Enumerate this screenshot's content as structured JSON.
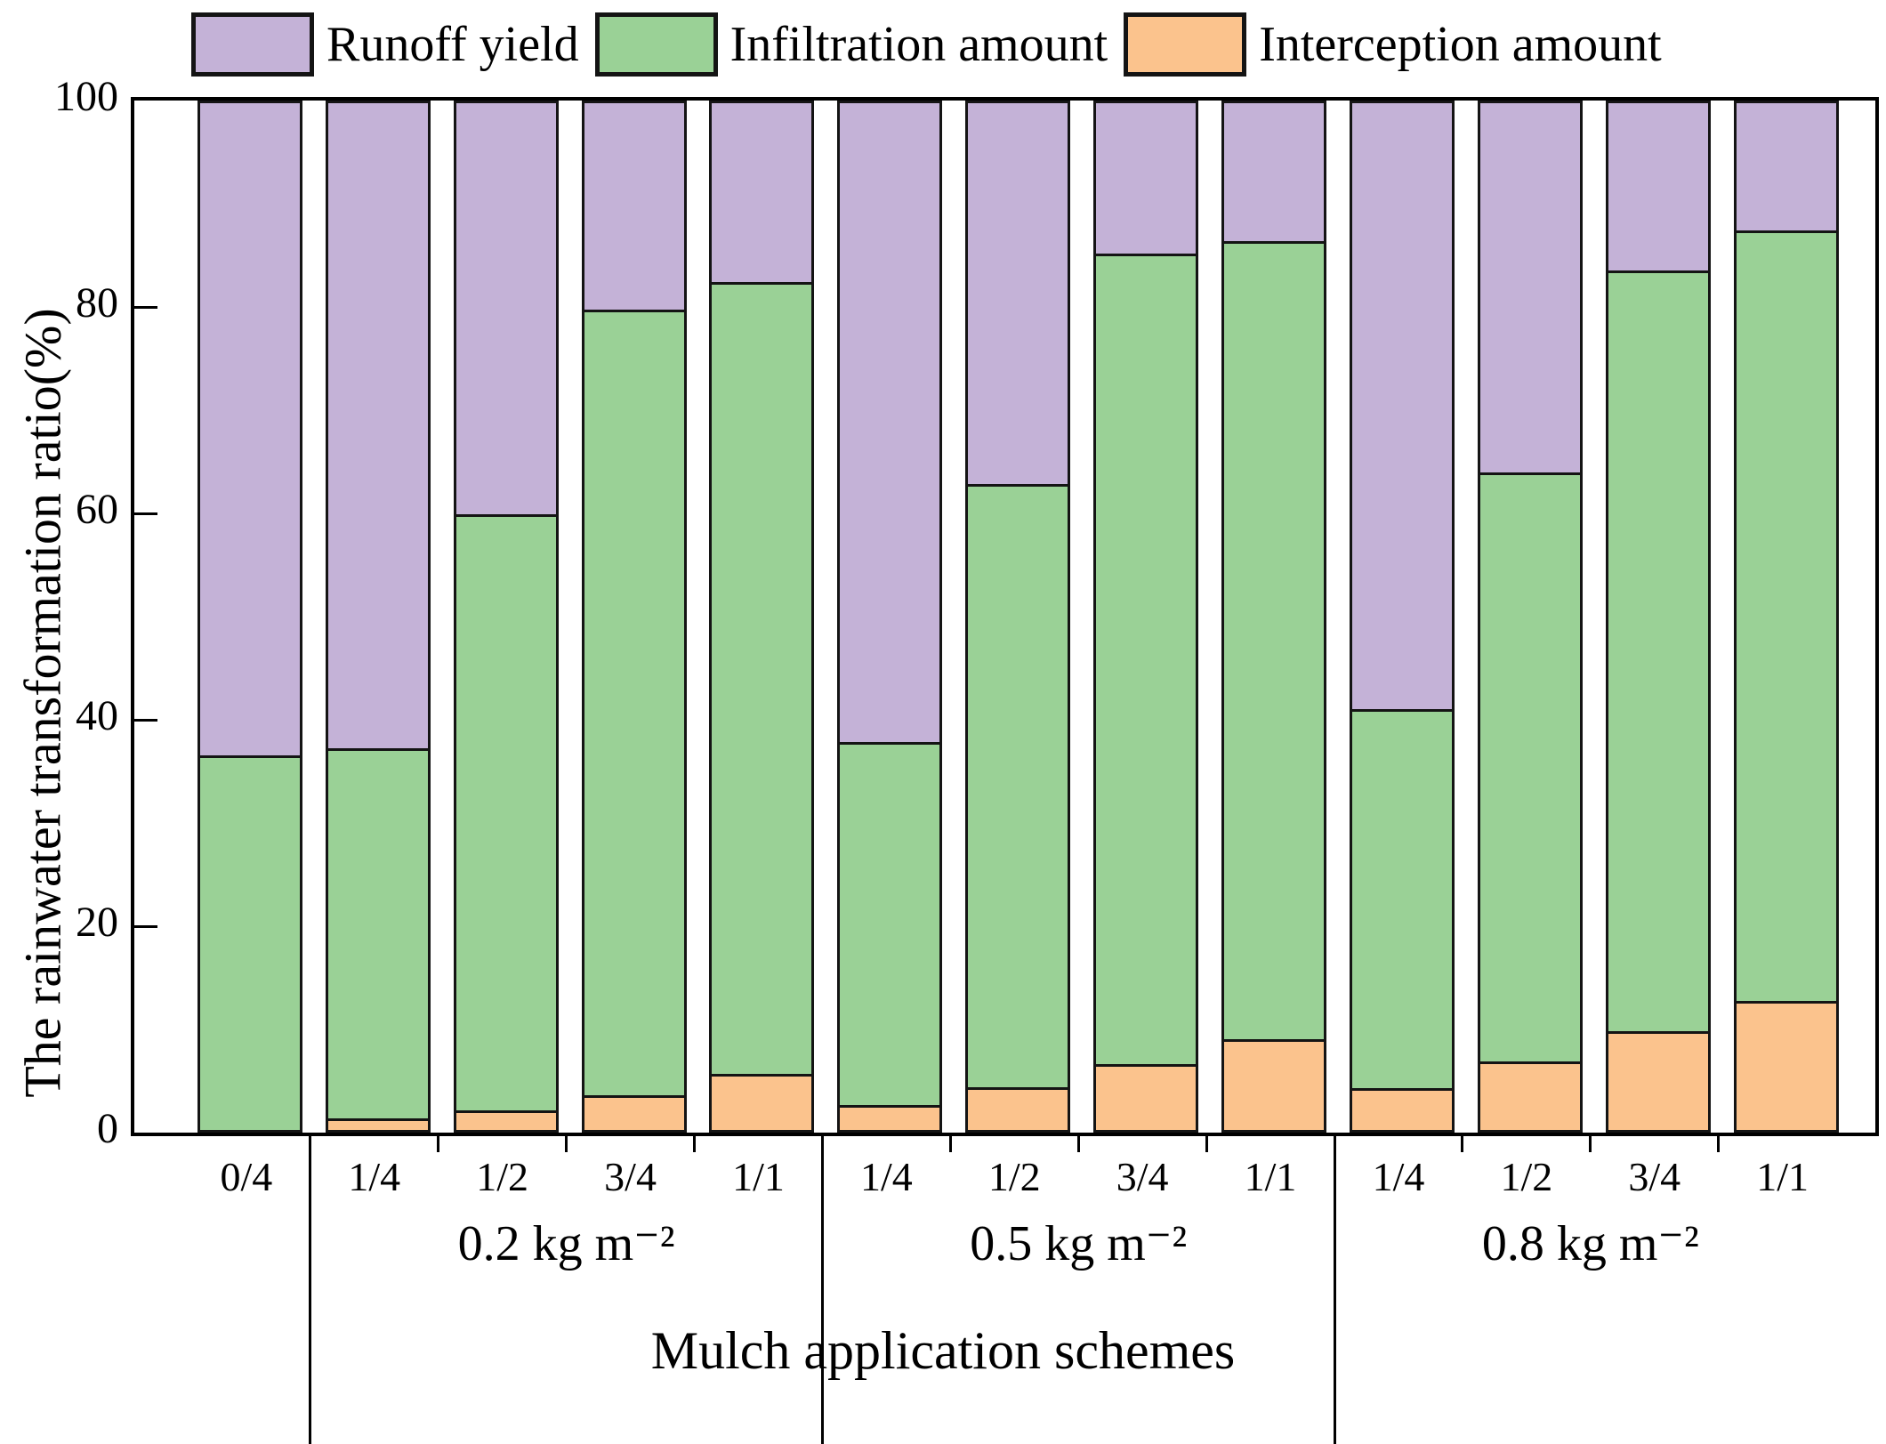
{
  "legend": {
    "items": [
      {
        "label": "Runoff yield",
        "color": "#c4b2d7"
      },
      {
        "label": "Infiltration amount",
        "color": "#9ad196"
      },
      {
        "label": "Interception amount",
        "color": "#fbc38d"
      }
    ]
  },
  "y_axis": {
    "label": "The rainwater transformation ratio(%)",
    "ticks": [
      0,
      20,
      40,
      60,
      80,
      100
    ]
  },
  "x_axis": {
    "title": "Mulch application schemes"
  },
  "chart_data": {
    "type": "bar",
    "stacked": true,
    "title": "",
    "xlabel": "Mulch application schemes",
    "ylabel": "The rainwater transformation ratio(%)",
    "ylim": [
      0,
      100
    ],
    "grid": false,
    "legend_position": "top",
    "categories": [
      "0/4",
      "1/4",
      "1/2",
      "3/4",
      "1/1",
      "1/4",
      "1/2",
      "3/4",
      "1/1",
      "1/4",
      "1/2",
      "3/4",
      "1/1"
    ],
    "groups": [
      {
        "label": "0.2 kg m⁻²",
        "bar_indices": [
          1,
          2,
          3,
          4
        ]
      },
      {
        "label": "0.5 kg m⁻²",
        "bar_indices": [
          5,
          6,
          7,
          8
        ]
      },
      {
        "label": "0.8 kg m⁻²",
        "bar_indices": [
          9,
          10,
          11,
          12
        ]
      }
    ],
    "separator_gaps": [
      1,
      5,
      9
    ],
    "series": [
      {
        "name": "Interception amount",
        "color": "#fbc38d",
        "values": [
          0,
          1.1,
          1.9,
          3.4,
          5.5,
          2.4,
          4.2,
          6.4,
          8.8,
          4.1,
          6.7,
          9.6,
          12.6
        ]
      },
      {
        "name": "Infiltration amount",
        "color": "#9ad196",
        "values": [
          36.5,
          36.1,
          58.1,
          76.5,
          77.1,
          35.4,
          58.7,
          79.0,
          77.8,
          36.9,
          57.3,
          74.1,
          75.0
        ]
      },
      {
        "name": "Runoff yield",
        "color": "#c4b2d7",
        "values": [
          63.5,
          62.8,
          40.0,
          20.1,
          17.4,
          62.2,
          37.1,
          14.6,
          13.4,
          59.0,
          36.0,
          16.3,
          12.4
        ]
      }
    ]
  }
}
